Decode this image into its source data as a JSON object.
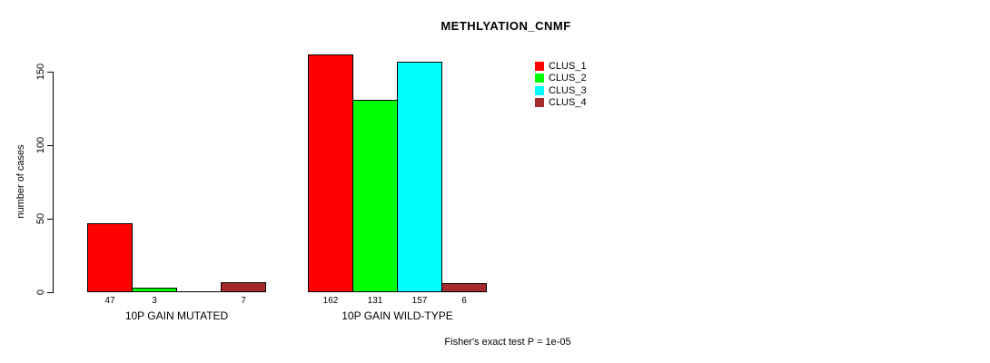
{
  "chart_data": {
    "type": "bar",
    "title": "METHLYATION_CNMF",
    "ylabel": "number of cases",
    "yticks": [
      0,
      50,
      100,
      150
    ],
    "ylim": [
      0,
      165
    ],
    "grid": false,
    "legend_position": "right-top",
    "series": [
      {
        "name": "CLUS_1",
        "color": "#FF0000"
      },
      {
        "name": "CLUS_2",
        "color": "#00FF00"
      },
      {
        "name": "CLUS_3",
        "color": "#00FFFF"
      },
      {
        "name": "CLUS_4",
        "color": "#A52A2A"
      }
    ],
    "groups": [
      {
        "label": "10P GAIN MUTATED",
        "values": [
          47,
          3,
          0,
          7
        ],
        "value_labels": [
          "47",
          "3",
          "",
          "7"
        ]
      },
      {
        "label": "10P GAIN WILD-TYPE",
        "values": [
          162,
          131,
          157,
          6
        ],
        "value_labels": [
          "162",
          "131",
          "157",
          "6"
        ]
      }
    ],
    "footnote": "Fisher's exact test P = 1e-05"
  }
}
